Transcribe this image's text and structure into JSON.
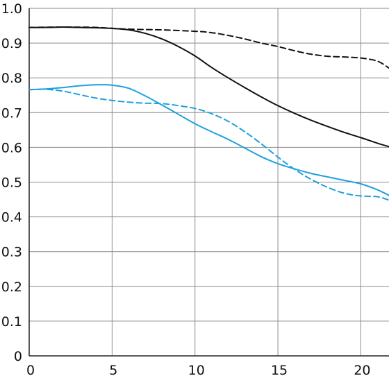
{
  "chart_data": {
    "type": "line",
    "title": "",
    "xlabel": "",
    "ylabel": "",
    "xlim": [
      0,
      21.7
    ],
    "ylim": [
      0,
      1.0
    ],
    "grid": true,
    "legend": "none",
    "x_ticks": [
      {
        "value": 0,
        "label": "0"
      },
      {
        "value": 5,
        "label": "5"
      },
      {
        "value": 10,
        "label": "10"
      },
      {
        "value": 15,
        "label": "15"
      },
      {
        "value": 20,
        "label": "20"
      }
    ],
    "y_ticks": [
      {
        "value": 0,
        "label": "0"
      },
      {
        "value": 0.1,
        "label": "0.1"
      },
      {
        "value": 0.2,
        "label": "0.2"
      },
      {
        "value": 0.3,
        "label": "0.3"
      },
      {
        "value": 0.4,
        "label": "0.4"
      },
      {
        "value": 0.5,
        "label": "0.5"
      },
      {
        "value": 0.6,
        "label": "0.6"
      },
      {
        "value": 0.7,
        "label": "0.7"
      },
      {
        "value": 0.8,
        "label": "0.8"
      },
      {
        "value": 0.9,
        "label": "0.9"
      },
      {
        "value": 1.0,
        "label": "1.0"
      }
    ],
    "series": [
      {
        "color": "#111111",
        "dash": "solid",
        "points": [
          [
            0,
            0.945
          ],
          [
            1,
            0.945
          ],
          [
            2,
            0.946
          ],
          [
            3,
            0.945
          ],
          [
            4,
            0.944
          ],
          [
            5,
            0.942
          ],
          [
            6,
            0.938
          ],
          [
            7,
            0.928
          ],
          [
            8,
            0.912
          ],
          [
            9,
            0.89
          ],
          [
            10,
            0.863
          ],
          [
            11,
            0.83
          ],
          [
            12,
            0.8
          ],
          [
            13,
            0.772
          ],
          [
            14,
            0.745
          ],
          [
            15,
            0.72
          ],
          [
            16,
            0.698
          ],
          [
            17,
            0.678
          ],
          [
            18,
            0.66
          ],
          [
            19,
            0.643
          ],
          [
            20,
            0.628
          ],
          [
            21,
            0.612
          ],
          [
            21.7,
            0.602
          ]
        ]
      },
      {
        "color": "#111111",
        "dash": "dashed",
        "points": [
          [
            0,
            0.945
          ],
          [
            2,
            0.946
          ],
          [
            4,
            0.945
          ],
          [
            6,
            0.94
          ],
          [
            8,
            0.938
          ],
          [
            10,
            0.934
          ],
          [
            11,
            0.93
          ],
          [
            12,
            0.922
          ],
          [
            13,
            0.912
          ],
          [
            14,
            0.9
          ],
          [
            15,
            0.89
          ],
          [
            16,
            0.878
          ],
          [
            17,
            0.868
          ],
          [
            18,
            0.862
          ],
          [
            19,
            0.86
          ],
          [
            20,
            0.857
          ],
          [
            21,
            0.848
          ],
          [
            21.7,
            0.828
          ]
        ]
      },
      {
        "color": "#1ea0de",
        "dash": "solid",
        "points": [
          [
            0,
            0.766
          ],
          [
            1,
            0.768
          ],
          [
            2,
            0.772
          ],
          [
            3,
            0.777
          ],
          [
            4,
            0.78
          ],
          [
            5,
            0.779
          ],
          [
            6,
            0.77
          ],
          [
            7,
            0.748
          ],
          [
            8,
            0.722
          ],
          [
            9,
            0.695
          ],
          [
            10,
            0.668
          ],
          [
            11,
            0.645
          ],
          [
            12,
            0.623
          ],
          [
            13,
            0.598
          ],
          [
            14,
            0.573
          ],
          [
            15,
            0.553
          ],
          [
            16,
            0.538
          ],
          [
            17,
            0.525
          ],
          [
            18,
            0.515
          ],
          [
            19,
            0.505
          ],
          [
            20,
            0.495
          ],
          [
            21,
            0.478
          ],
          [
            21.7,
            0.462
          ]
        ]
      },
      {
        "color": "#1ea0de",
        "dash": "dashed",
        "points": [
          [
            0,
            0.766
          ],
          [
            1,
            0.767
          ],
          [
            2,
            0.762
          ],
          [
            3,
            0.752
          ],
          [
            4,
            0.742
          ],
          [
            5,
            0.735
          ],
          [
            6,
            0.73
          ],
          [
            7,
            0.727
          ],
          [
            8,
            0.726
          ],
          [
            9,
            0.72
          ],
          [
            10,
            0.712
          ],
          [
            11,
            0.697
          ],
          [
            12,
            0.675
          ],
          [
            13,
            0.645
          ],
          [
            14,
            0.61
          ],
          [
            15,
            0.572
          ],
          [
            16,
            0.537
          ],
          [
            17,
            0.508
          ],
          [
            18,
            0.485
          ],
          [
            19,
            0.468
          ],
          [
            20,
            0.46
          ],
          [
            21,
            0.458
          ],
          [
            21.7,
            0.448
          ]
        ]
      }
    ]
  }
}
